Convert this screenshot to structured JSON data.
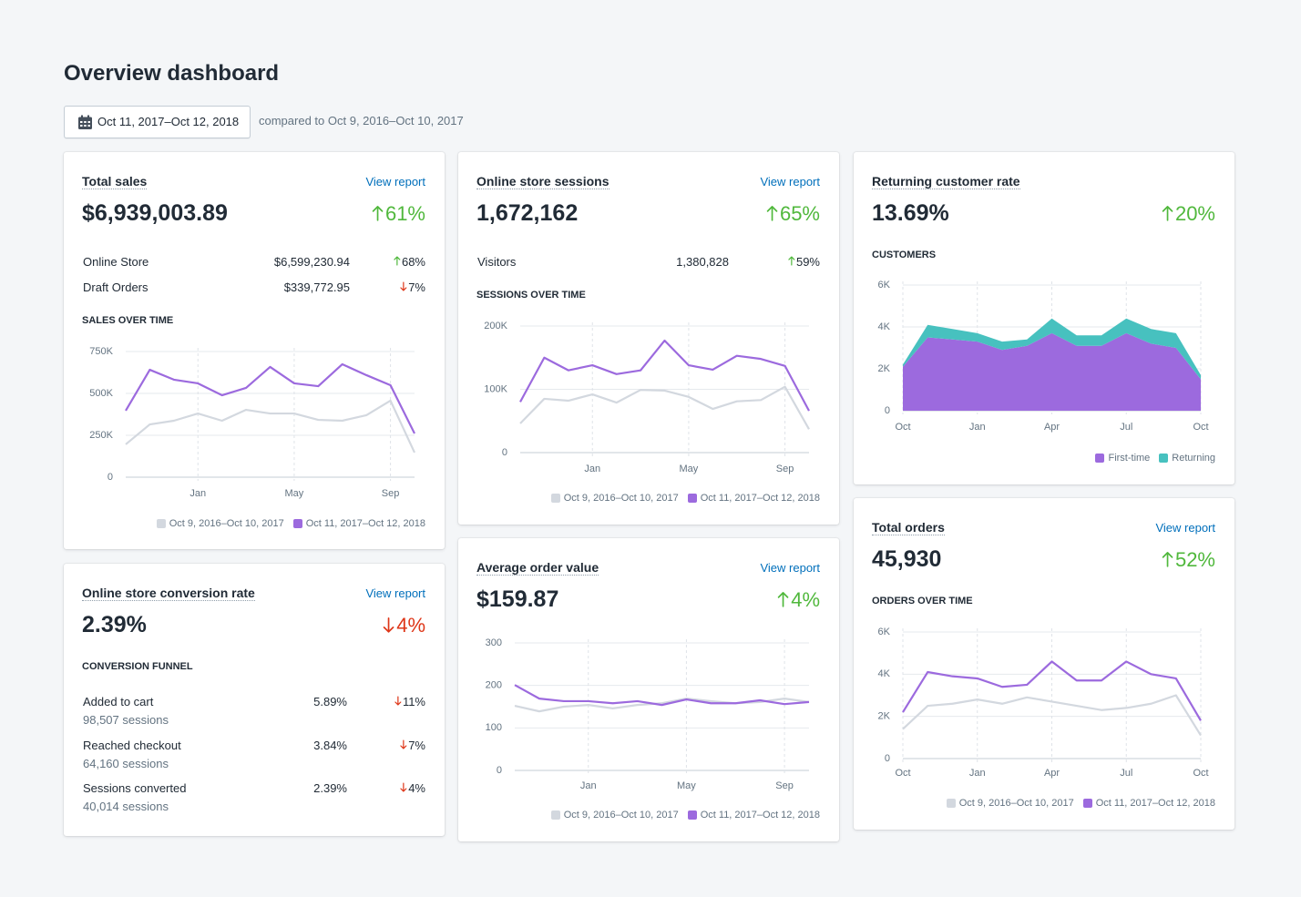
{
  "title": "Overview dashboard",
  "date_range": "Oct 11, 2017–Oct 12, 2018",
  "comparison": "compared to Oct 9, 2016–Oct 10, 2017",
  "cards": [
    {
      "title": "Total sales",
      "link": "View report",
      "value": "$6,939,003.89",
      "change": {
        "text": "61%",
        "direction": "up"
      },
      "rows": [
        {
          "label": "Online Store",
          "amount": "$6,599,230.94",
          "change": {
            "text": "68%",
            "direction": "up"
          }
        },
        {
          "label": "Draft Orders",
          "amount": "$339,772.95",
          "change": {
            "text": "7%",
            "direction": "down"
          }
        }
      ],
      "chart": {
        "type": "line",
        "title": "SALES OVER TIME",
        "categories": [
          null,
          null,
          null,
          "Jan",
          null,
          null,
          null,
          "May",
          null,
          null,
          null,
          "Sep",
          null
        ],
        "series": [
          {
            "name": "Oct 9, 2016–Oct 10, 2017",
            "color": "#d3d8df",
            "values": [
              196000,
              315000,
              337000,
              380000,
              337000,
              402000,
              380000,
              380000,
              342000,
              337000,
              370000,
              457000,
              147000
            ]
          },
          {
            "name": "Oct 11, 2017–Oct 12, 2018",
            "color": "#9c6ade",
            "values": [
              397000,
              641000,
              582000,
              560000,
              489000,
              533000,
              658000,
              560000,
              543000,
              674000,
              609000,
              549000,
              261000
            ]
          }
        ],
        "ylim": [
          0,
          750000
        ],
        "yticks": [
          0,
          {
            "value": 250000,
            "label": "250K"
          },
          {
            "value": 500000,
            "label": "500K"
          },
          {
            "value": 750000,
            "label": "750K"
          }
        ],
        "grid": true
      }
    },
    {
      "title": "Online store sessions",
      "link": "View report",
      "value": "1,672,162",
      "change": {
        "text": "65%",
        "direction": "up"
      },
      "rows": [
        {
          "label": "Visitors",
          "amount": "1,380,828",
          "change": {
            "text": "59%",
            "direction": "up"
          }
        }
      ],
      "chart": {
        "type": "line",
        "title": "SESSIONS OVER TIME",
        "categories": [
          null,
          null,
          null,
          "Jan",
          null,
          null,
          null,
          "May",
          null,
          null,
          null,
          "Sep",
          null
        ],
        "series": [
          {
            "name": "Oct 9, 2016–Oct 10, 2017",
            "color": "#d3d8df",
            "values": [
              46000,
              85000,
              82000,
              92000,
              79000,
              99000,
              98000,
              88000,
              69000,
              81000,
              83000,
              104000,
              37000
            ]
          },
          {
            "name": "Oct 11, 2017–Oct 12, 2018",
            "color": "#9c6ade",
            "values": [
              80000,
              150000,
              130000,
              138000,
              124000,
              130000,
              177000,
              138000,
              131000,
              153000,
              148000,
              137000,
              66000
            ]
          }
        ],
        "ylim": [
          0,
          200000
        ],
        "yticks": [
          0,
          {
            "value": 100000,
            "label": "100K"
          },
          {
            "value": 200000,
            "label": "200K"
          }
        ],
        "grid": true
      }
    },
    {
      "title": "Returning customer rate",
      "value": "13.69%",
      "change": {
        "text": "20%",
        "direction": "up"
      },
      "chart": {
        "type": "area",
        "stacked": true,
        "title": "CUSTOMERS",
        "categories": [
          "Oct",
          null,
          null,
          "Jan",
          null,
          null,
          "Apr",
          null,
          null,
          "Jul",
          null,
          null,
          "Oct"
        ],
        "series": [
          {
            "name": "First-time",
            "color": "#9c6ade",
            "values": [
              2100,
              3500,
              3400,
              3300,
              2900,
              3100,
              3700,
              3100,
              3100,
              3700,
              3200,
              3000,
              1500
            ]
          },
          {
            "name": "Returning",
            "color": "#47c1bf",
            "values": [
              100,
              600,
              500,
              400,
              400,
              300,
              700,
              500,
              500,
              700,
              700,
              700,
              200
            ]
          }
        ],
        "ylim": [
          0,
          6000
        ],
        "yticks": [
          0,
          {
            "value": 2000,
            "label": "2K"
          },
          {
            "value": 4000,
            "label": "4K"
          },
          {
            "value": 6000,
            "label": "6K"
          }
        ],
        "grid": true
      }
    },
    {
      "title": "Online store conversion rate",
      "link": "View report",
      "value": "2.39%",
      "change": {
        "text": "4%",
        "direction": "down"
      },
      "funnel": {
        "title": "CONVERSION FUNNEL",
        "steps": [
          {
            "label": "Added to cart",
            "sessions": "98,507 sessions",
            "rate": "5.89%",
            "change": {
              "text": "11%",
              "direction": "down"
            }
          },
          {
            "label": "Reached checkout",
            "sessions": "64,160 sessions",
            "rate": "3.84%",
            "change": {
              "text": "7%",
              "direction": "down"
            }
          },
          {
            "label": "Sessions converted",
            "sessions": "40,014 sessions",
            "rate": "2.39%",
            "change": {
              "text": "4%",
              "direction": "down"
            }
          }
        ]
      }
    },
    {
      "title": "Average order value",
      "link": "View report",
      "value": "$159.87",
      "change": {
        "text": "4%",
        "direction": "up"
      },
      "chart": {
        "type": "line",
        "categories": [
          null,
          null,
          null,
          "Jan",
          null,
          null,
          null,
          "May",
          null,
          null,
          null,
          "Sep",
          null
        ],
        "series": [
          {
            "name": "Oct 9, 2016–Oct 10, 2017",
            "color": "#d3d8df",
            "values": [
              152,
              139,
              150,
              154,
              146,
              154,
              158,
              169,
              163,
              158,
              161,
              169,
              161
            ]
          },
          {
            "name": "Oct 11, 2017–Oct 12, 2018",
            "color": "#9c6ade",
            "values": [
              201,
              169,
              163,
              163,
              158,
              163,
              154,
              167,
              158,
              158,
              165,
              156,
              161
            ]
          }
        ],
        "ylim": [
          0,
          300
        ],
        "yticks": [
          0,
          100,
          200,
          300
        ],
        "grid": true
      }
    },
    {
      "title": "Total orders",
      "link": "View report",
      "value": "45,930",
      "change": {
        "text": "52%",
        "direction": "up"
      },
      "chart": {
        "type": "line",
        "title": "ORDERS OVER TIME",
        "categories": [
          "Oct",
          null,
          null,
          "Jan",
          null,
          null,
          "Apr",
          null,
          null,
          "Jul",
          null,
          null,
          "Oct"
        ],
        "series": [
          {
            "name": "Oct 9, 2016–Oct 10, 2017",
            "color": "#d3d8df",
            "values": [
              1400,
              2500,
              2600,
              2800,
              2600,
              2900,
              2700,
              2500,
              2300,
              2400,
              2600,
              3000,
              1100
            ]
          },
          {
            "name": "Oct 11, 2017–Oct 12, 2018",
            "color": "#9c6ade",
            "values": [
              2200,
              4100,
              3900,
              3800,
              3400,
              3500,
              4600,
              3700,
              3700,
              4600,
              4000,
              3800,
              1800
            ]
          }
        ],
        "ylim": [
          0,
          6000
        ],
        "yticks": [
          0,
          {
            "value": 2000,
            "label": "2K"
          },
          {
            "value": 4000,
            "label": "4K"
          },
          {
            "value": 6000,
            "label": "6K"
          }
        ],
        "grid": true
      }
    }
  ]
}
